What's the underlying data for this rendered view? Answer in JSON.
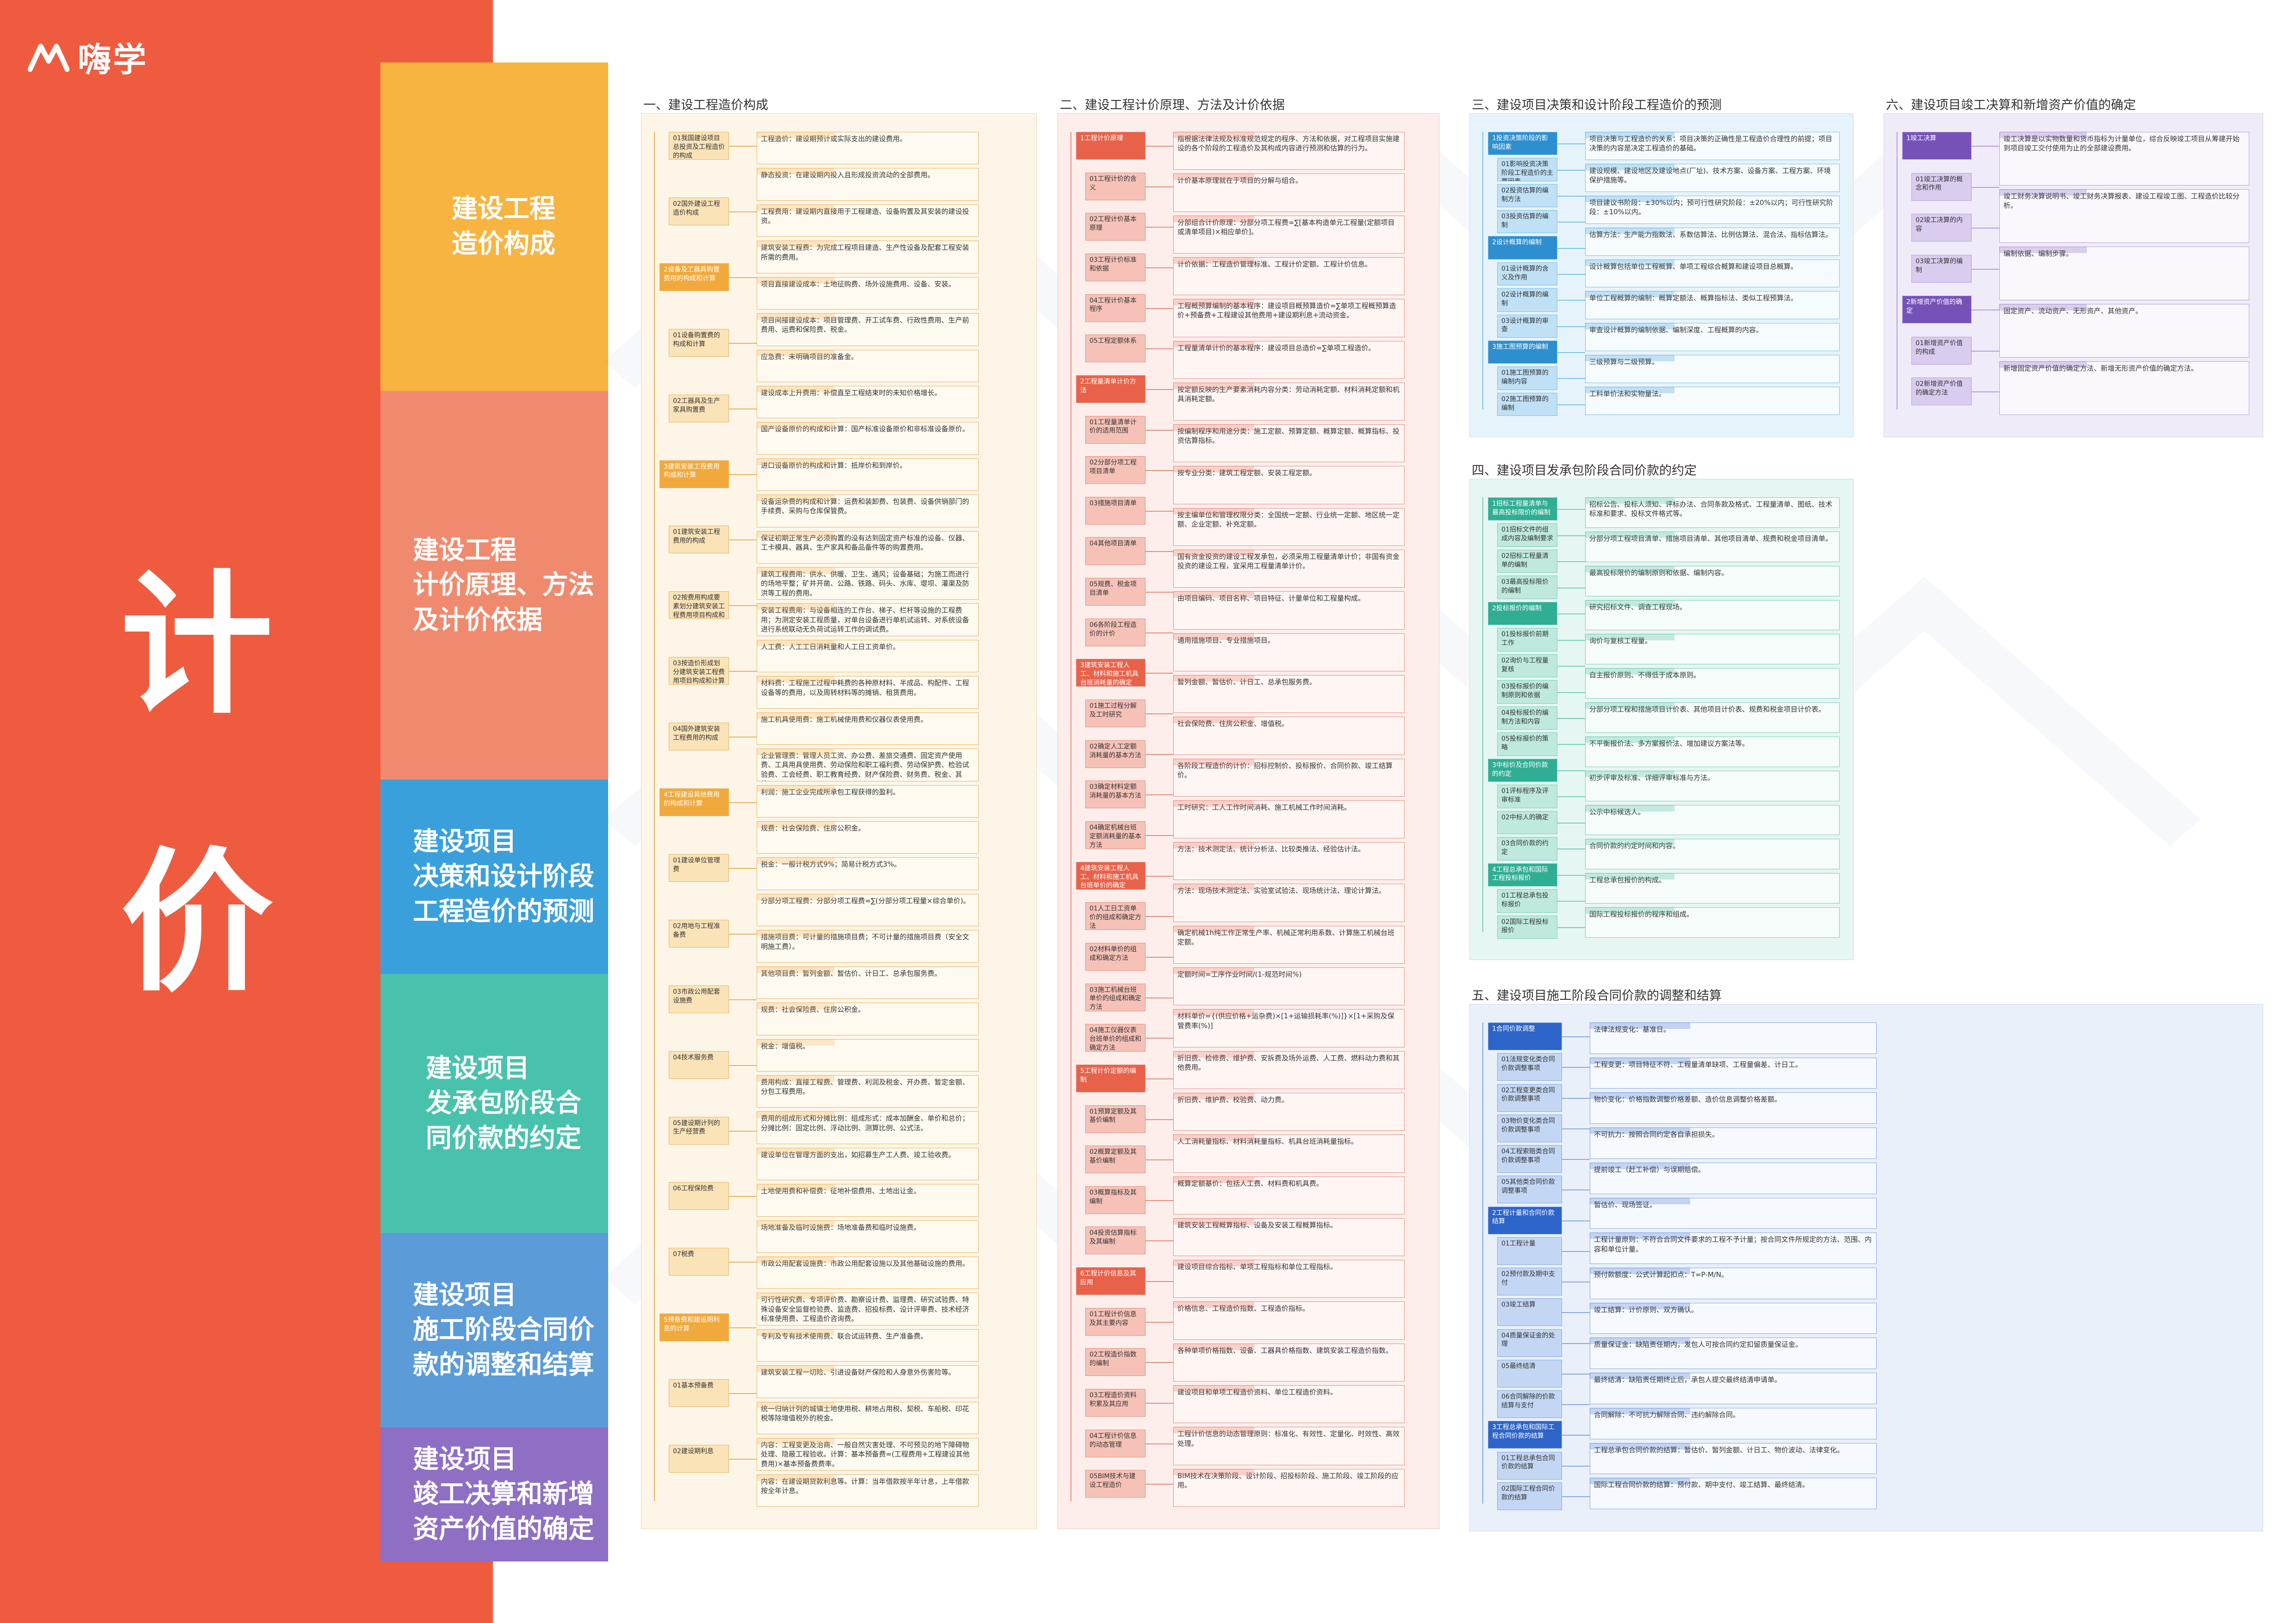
{
  "brand": {
    "name": "嗨学",
    "icon": "hi-logo-icon"
  },
  "title_chars": [
    "计",
    "价"
  ],
  "categories": [
    {
      "label": "建设工程\n造价构成",
      "color": "#f7b441"
    },
    {
      "label": "建设工程\n计价原理、方法\n及计价依据",
      "color": "#f08a6e"
    },
    {
      "label": "建设项目\n决策和设计阶段\n工程造价的预测",
      "color": "#3aa0dc"
    },
    {
      "label": "建设项目\n发承包阶段合\n同价款的约定",
      "color": "#49c2ad"
    },
    {
      "label": "建设项目\n施工阶段合同价\n款的调整和结算",
      "color": "#5b9bd8"
    },
    {
      "label": "建设项目\n竣工决算和新增\n资产价值的确定",
      "color": "#8e6fc4"
    }
  ],
  "sections": [
    {
      "title": "一、建设工程造价构成",
      "root": "1概述",
      "branches": [
        "01我国建设项目总投资及工程造价的构成",
        "02国外建设工程造价构成",
        "2设备及工器具购置费用的构成和计算",
        "01设备购置费的构成和计算",
        "02工器具及生产家具购置费",
        "3建筑安装工程费用构成和计算",
        "01建筑安装工程费用的构成",
        "02按费用构成要素划分建筑安装工程费用项目构成和计算",
        "03按造价形成划分建筑安装工程费用项目构成和计算",
        "04国外建筑安装工程费用的构成",
        "4工程建设其他费用的构成和计算",
        "01建设单位管理费",
        "02用地与工程准备费",
        "03市政公用配套设施费",
        "04技术服务费",
        "05建设期计列的生产经营费",
        "06工程保险费",
        "07税费",
        "5预备费和建设期利息的计算",
        "01基本预备费",
        "02建设期利息"
      ],
      "leaves": [
        "工程造价：建设期预计或实际支出的建设费用。",
        "静态投资：在建设期内投入且形成投资流动的全部费用。",
        "工程费用：建设期内直接用于工程建造、设备购置及其安装的建设投资。",
        "建筑安装工程费：为完成工程项目建造、生产性设备及配套工程安装所需的费用。",
        "项目直接建设成本：土地征购费、场外设施费用、设备、安装。",
        "项目间接建设成本：项目管理费、开工试车费、行政性费用、生产前费用、运费和保险费、税金。",
        "应急费：未明确项目的准备金。",
        "建设成本上升费用：补偿直至工程结束时的未知价格增长。",
        "国产设备原价的构成和计算：国产标准设备原价和非标准设备原价。",
        "进口设备原价的构成和计算：抵岸价和到岸价。",
        "设备运杂费的构成和计算：运费和装卸费、包装费、设备供销部门的手续费、采购与仓库保管费。",
        "保证初期正常生产必须购置的没有达到固定资产标准的设备、仪器、工卡模具、器具、生产家具和备品备件等的购置费用。",
        "建筑工程费用：供水、供暖、卫生、通风；设备基础；为施工而进行的场地平整；矿井开凿、公路、铁路、码头、水库、堤坝、灌渠及防洪等工程的费用。",
        "安装工程费用：与设备相连的工作台、梯子、栏杆等设施的工程费用；为测定安装工程质量，对单台设备进行单机试运转、对系统设备进行系统联动无负荷试运转工作的调试费。",
        "人工费：人工工日消耗量和人工日工资单价。",
        "材料费：工程施工过程中耗费的各种原材料、半成品、构配件、工程设备等的费用，以及周转材料等的摊销、租赁费用。",
        "施工机具使用费：施工机械使用费和仪器仪表使用费。",
        "企业管理费：管理人员工资、办公费、差旅交通费、固定资产使用费、工具用具使用费、劳动保险和职工福利费、劳动保护费、检验试验费、工会经费、职工教育经费、财产保险费、财务费、税金、其他。",
        "利润：施工企业完成所承包工程获得的盈利。",
        "规费：社会保险费、住房公积金。",
        "税金：一般计税方式9%；简易计税方式3%。",
        "分部分项工程费：分部分项工程费=∑(分部分项工程量×综合单价)。",
        "措施项目费：可计量的措施项目费；不可计量的措施项目费（安全文明施工费）。",
        "其他项目费：暂列金额、暂估价、计日工、总承包服务费。",
        "规费：社会保险费、住房公积金。",
        "税金：增值税。",
        "费用构成：直接工程费、管理费、利润及税金、开办费、暂定金额、分包工程费用。",
        "费用的组成形式和分摊比例：组成形式：成本加酬金、单价和总价；分摊比例：固定比例、浮动比例、测算比例、公式法。",
        "建设单位在管理方面的支出，如招募生产工人费、竣工验收费。",
        "土地使用费和补偿费：征地补偿费用、土地出让金。",
        "场地准备及临时设施费：场地准备费和临时设施费。",
        "市政公用配套设施费：市政公用配套设施以及其他基础设施的费用。",
        "可行性研究费、专项评价费、勘察设计费、监理费、研究试验费、特殊设备安全监督检验费、监造费、招投标费、设计评审费、技术经济标准使用费、工程造价咨询费。",
        "专利及专有技术使用费、联合试运转费、生产准备费。",
        "建筑安装工程一切险、引进设备财产保险和人身意外伤害险等。",
        "统一归纳计列的城镇土地使用税、耕地占用税、契税、车船税、印花税等除增值税外的税金。",
        "内容：工程变更及治商、一般自然灾害处理、不可预见的地下障碍物处理、隐蔽工程验收。计算：基本预备费=(工程费用+工程建设其他费用)×基本预备费费率。",
        "内容：在建设期贷款利息等。计算：当年借款按半年计息，上年借款按全年计息。"
      ]
    },
    {
      "title": "二、建设工程计价原理、方法及计价依据",
      "branches": [
        "1工程计价原理",
        "01工程计价的含义",
        "02工程计价基本原理",
        "03工程计价标准和依据",
        "04工程计价基本程序",
        "05工程定额体系",
        "2工程量清单计价方法",
        "01工程量清单计价的适用范围",
        "02分部分项工程项目清单",
        "03措施项目清单",
        "04其他项目清单",
        "05规费、税金项目清单",
        "06各阶段工程造价的计价",
        "3建筑安装工程人工、材料和施工机具台班消耗量的确定",
        "01施工过程分解及工时研究",
        "02确定人工定额消耗量的基本方法",
        "03确定材料定额消耗量的基本方法",
        "04确定机械台班定额消耗量的基本方法",
        "4建筑安装工程人工、材料和施工机具台班单价的确定",
        "01人工日工资单价的组成和确定方法",
        "02材料单价的组成和确定方法",
        "03施工机械台班单价的组成和确定方法",
        "04施工仪器仪表台班单价的组成和确定方法",
        "5工程计价定额的编制",
        "01预算定额及其基价编制",
        "02概算定额及其基价编制",
        "03概算指标及其编制",
        "04投资估算指标及其编制",
        "6工程计价信息及其应用",
        "01工程计价信息及其主要内容",
        "02工程造价指数的编制",
        "03工程造价资料积累及其应用",
        "04工程计价信息的动态管理",
        "05BIM技术与建设工程造价"
      ],
      "leaves": [
        "指根据法律法规及标准规范规定的程序、方法和依据，对工程项目实施建设的各个阶段的工程造价及其构成内容进行预测和估算的行为。",
        "计价基本原理就在于项目的分解与组合。",
        "分部组合计价原理：分部分项工程费=∑[基本构造单元工程量(定额项目或清单项目)×相应单价]。",
        "计价依据：工程造价管理标准、工程计价定额、工程计价信息。",
        "工程概预算编制的基本程序：建设项目概预算造价=∑单项工程概预算造价+预备费+工程建设其他费用+建设期利息+流动资金。",
        "工程量清单计价的基本程序：建设项目总造价=∑单项工程造价。",
        "按定额反映的生产要素消耗内容分类：劳动消耗定额、材料消耗定额和机具消耗定额。",
        "按编制程序和用途分类：施工定额、预算定额、概算定额、概算指标、投资估算指标。",
        "按专业分类：建筑工程定额、安装工程定额。",
        "按主编单位和管理权限分类：全国统一定额、行业统一定额、地区统一定额、企业定额、补充定额。",
        "国有资金投资的建设工程发承包，必须采用工程量清单计价；非国有资金投资的建设工程，宜采用工程量清单计价。",
        "由项目编码、项目名称、项目特征、计量单位和工程量构成。",
        "通用措施项目、专业措施项目。",
        "暂列金额、暂估价、计日工、总承包服务费。",
        "社会保险费、住房公积金、增值税。",
        "各阶段工程造价的计价：招标控制价、投标报价、合同价款、竣工结算价。",
        "工时研究：工人工作时间消耗、施工机械工作时间消耗。",
        "方法：技术测定法、统计分析法、比较类推法、经验估计法。",
        "方法：现场技术测定法、实验室试验法、现场统计法、理论计算法。",
        "确定机械1h纯工作正常生产率、机械正常利用系数、计算施工机械台班定额。",
        "定额时间=工序作业时间/(1-规范时间%)",
        "材料单价={(供应价格+运杂费)×[1+运输损耗率(%)]}×[1+采购及保管费率(%)]",
        "折旧费、检修费、维护费、安拆费及场外运费、人工费、燃料动力费和其他费用。",
        "折旧费、维护费、校验费、动力费。",
        "人工消耗量指标、材料消耗量指标、机具台班消耗量指标。",
        "概算定额基价：包括人工费、材料费和机具费。",
        "建筑安装工程概算指标、设备及安装工程概算指标。",
        "建设项目综合指标、单项工程指标和单位工程指标。",
        "价格信息、工程造价指数、工程造价指标。",
        "各种单项价格指数、设备、工器具价格指数、建筑安装工程造价指数。",
        "建设项目和单项工程造价资料、单位工程造价资料。",
        "工程计价信息的动态管理原则：标准化、有效性、定量化、时效性、高效处理。",
        "BIM技术在决策阶段、设计阶段、招投标阶段、施工阶段、竣工阶段的应用。"
      ]
    },
    {
      "title": "三、建设项目决策和设计阶段工程造价的预测",
      "branches": [
        "1投资决策阶段的影响因素",
        "01影响投资决策阶段工程造价的主要因素",
        "02投资估算的编制方法",
        "03投资估算的编制",
        "2设计概算的编制",
        "01设计概算的含义及作用",
        "02设计概算的编制",
        "03设计概算的审查",
        "3施工图预算的编制",
        "01施工图预算的编制内容",
        "02施工图预算的编制"
      ],
      "leaves": [
        "项目决策与工程造价的关系：项目决策的正确性是工程造价合理性的前提；项目决策的内容是决定工程造价的基础。",
        "建设规模、建设地区及建设地点(厂址)、技术方案、设备方案、工程方案、环境保护措施等。",
        "项目建议书阶段：±30%以内；预可行性研究阶段：±20%以内；可行性研究阶段：±10%以内。",
        "估算方法：生产能力指数法、系数估算法、比例估算法、混合法、指标估算法。",
        "设计概算包括单位工程概算、单项工程综合概算和建设项目总概算。",
        "单位工程概算的编制：概算定额法、概算指标法、类似工程预算法。",
        "审查设计概算的编制依据、编制深度、工程概算的内容。",
        "三级预算与二级预算。",
        "工料单价法和实物量法。"
      ]
    },
    {
      "title": "四、建设项目发承包阶段合同价款的约定",
      "branches": [
        "1招标工程量清单与最高投标限价的编制",
        "01招标文件的组成内容及编制要求",
        "02招标工程量清单的编制",
        "03最高投标限价的编制",
        "2投标报价的编制",
        "01投标报价前期工作",
        "02询价与工程量复核",
        "03投标报价的编制原则和依据",
        "04投标报价的编制方法和内容",
        "05投标报价的策略",
        "3中标价及合同价款的约定",
        "01评标程序及评审标准",
        "02中标人的确定",
        "03合同价款的约定",
        "4工程总承包和国际工程投标报价",
        "01工程总承包投标报价",
        "02国际工程投标报价"
      ],
      "leaves": [
        "招标公告、投标人须知、评标办法、合同条款及格式、工程量清单、图纸、技术标准和要求、投标文件格式等。",
        "分部分项工程项目清单、措施项目清单、其他项目清单、规费和税金项目清单。",
        "最高投标限价的编制原则和依据、编制内容。",
        "研究招标文件、调查工程现场。",
        "询价与复核工程量。",
        "自主报价原则、不得低于成本原则。",
        "分部分项工程和措施项目计价表、其他项目计价表、规费和税金项目计价表。",
        "不平衡报价法、多方案报价法、增加建议方案法等。",
        "初步评审及标准、详细评审标准与方法。",
        "公示中标候选人。",
        "合同价款的约定时间和内容。",
        "工程总承包报价的构成。",
        "国际工程投标报价的程序和组成。"
      ]
    },
    {
      "title": "五、建设项目施工阶段合同价款的调整和结算",
      "branches": [
        "1合同价款调整",
        "01法规变化类合同价款调整事项",
        "02工程变更类合同价款调整事项",
        "03物价变化类合同价款调整事项",
        "04工程索赔类合同价款调整事项",
        "05其他类合同价款调整事项",
        "2工程计量和合同价款结算",
        "01工程计量",
        "02预付款及期中支付",
        "03竣工结算",
        "04质量保证金的处理",
        "05最终结清",
        "06合同解除的价款结算与支付",
        "3工程总承包和国际工程合同价款的结算",
        "01工程总承包合同价款的结算",
        "02国际工程合同价款的结算"
      ],
      "leaves": [
        "法律法规变化：基准日。",
        "工程变更：项目特征不符、工程量清单缺项、工程量偏差、计日工。",
        "物价变化：价格指数调整价格差额、造价信息调整价格差额。",
        "不可抗力：按照合同约定各自承担损失。",
        "提前竣工（赶工补偿）与误期赔偿。",
        "暂估价、现场签证。",
        "工程计量原则：不符合合同文件要求的工程不予计量；按合同文件所规定的方法、范围、内容和单位计量。",
        "预付款额度：公式计算起扣点：T=P-M/N。",
        "竣工结算：计价原则、双方确认。",
        "质量保证金：缺陷责任期内，发包人可按合同约定扣留质量保证金。",
        "最终结清：缺陷责任期终止后，承包人提交最终结清申请单。",
        "合同解除：不可抗力解除合同、违约解除合同。",
        "工程总承包合同价款的结算：暂估价、暂列金额、计日工、物价波动、法律变化。",
        "国际工程合同价款的结算：预付款、期中支付、竣工结算、最终结清。"
      ]
    },
    {
      "title": "六、建设项目竣工决算和新增资产价值的确定",
      "branches": [
        "1竣工决算",
        "01竣工决算的概念和作用",
        "02竣工决算的内容",
        "03竣工决算的编制",
        "2新增资产价值的确定",
        "01新增资产价值的构成",
        "02新增资产价值的确定方法"
      ],
      "leaves": [
        "竣工决算是以实物数量和货币指标为计量单位，综合反映竣工项目从筹建开始到项目竣工交付使用为止的全部建设费用。",
        "竣工财务决算说明书、竣工财务决算报表、建设工程竣工图、工程造价比较分析。",
        "编制依据、编制步骤。",
        "固定资产、流动资产、无形资产、其他资产。",
        "新增固定资产价值的确定方法、新增无形资产价值的确定方法。"
      ]
    }
  ]
}
